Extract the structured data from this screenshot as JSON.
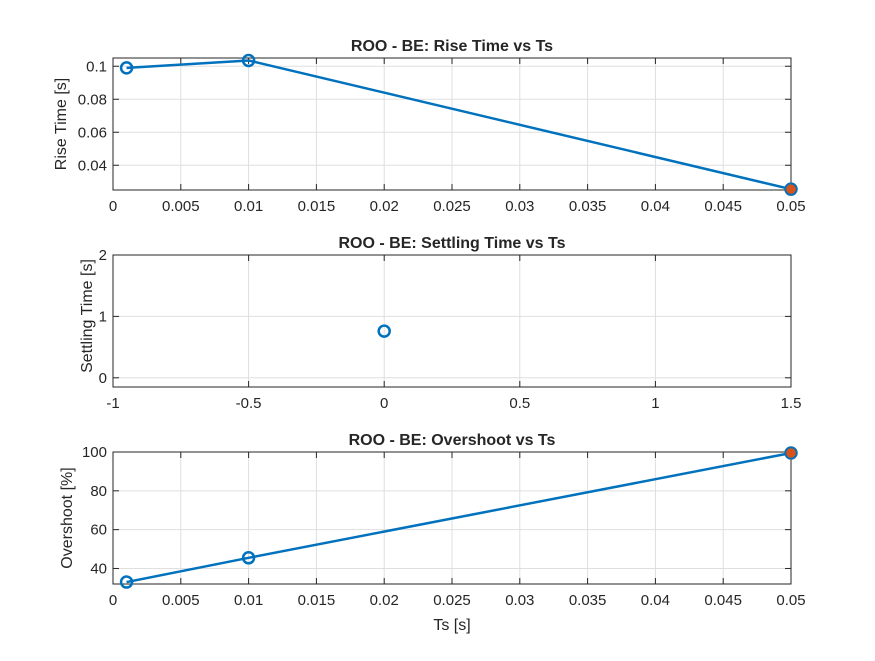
{
  "chart_data": [
    {
      "type": "line",
      "title": "ROO - BE: Rise Time vs Ts",
      "xlabel": "",
      "ylabel": "Rise Time [s]",
      "xlim": [
        0,
        0.05
      ],
      "ylim": [
        0.025,
        0.105
      ],
      "xticks": [
        0,
        0.005,
        0.01,
        0.015,
        0.02,
        0.025,
        0.03,
        0.035,
        0.04,
        0.045,
        0.05
      ],
      "xtick_labels": [
        "0",
        "0.005",
        "0.01",
        "0.015",
        "0.02",
        "0.025",
        "0.03",
        "0.035",
        "0.04",
        "0.045",
        "0.05"
      ],
      "yticks": [
        0.04,
        0.06,
        0.08,
        0.1
      ],
      "ytick_labels": [
        "0.04",
        "0.06",
        "0.08",
        "0.1"
      ],
      "grid": true,
      "series": [
        {
          "x": [
            0.001,
            0.01,
            0.05
          ],
          "y": [
            0.099,
            0.1035,
            0.0255
          ],
          "color": "#0072BD",
          "marker": "circle"
        }
      ],
      "highlight_points": [
        {
          "x": 0.05,
          "y": 0.0255,
          "color": "#D95319"
        }
      ]
    },
    {
      "type": "scatter",
      "title": "ROO - BE: Settling Time vs Ts",
      "xlabel": "",
      "ylabel": "Settling Time [s]",
      "xlim": [
        -1,
        1.5
      ],
      "ylim": [
        -0.15,
        2
      ],
      "xticks": [
        -1,
        -0.5,
        0,
        0.5,
        1,
        1.5
      ],
      "xtick_labels": [
        "-1",
        "-0.5",
        "0",
        "0.5",
        "1",
        "1.5"
      ],
      "yticks": [
        0,
        1,
        2
      ],
      "ytick_labels": [
        "0",
        "1",
        "2"
      ],
      "grid": true,
      "series": [
        {
          "x": [
            0
          ],
          "y": [
            0.76
          ],
          "color": "#0072BD",
          "marker": "circle"
        }
      ],
      "highlight_points": []
    },
    {
      "type": "line",
      "title": "ROO - BE: Overshoot vs Ts",
      "xlabel": "Ts [s]",
      "ylabel": "Overshoot [%]",
      "xlim": [
        0,
        0.05
      ],
      "ylim": [
        32,
        100
      ],
      "xticks": [
        0,
        0.005,
        0.01,
        0.015,
        0.02,
        0.025,
        0.03,
        0.035,
        0.04,
        0.045,
        0.05
      ],
      "xtick_labels": [
        "0",
        "0.005",
        "0.01",
        "0.015",
        "0.02",
        "0.025",
        "0.03",
        "0.035",
        "0.04",
        "0.045",
        "0.05"
      ],
      "yticks": [
        40,
        60,
        80,
        100
      ],
      "ytick_labels": [
        "40",
        "60",
        "80",
        "100"
      ],
      "grid": true,
      "series": [
        {
          "x": [
            0.001,
            0.01,
            0.05
          ],
          "y": [
            33,
            45.5,
            99.5
          ],
          "color": "#0072BD",
          "marker": "circle"
        }
      ],
      "highlight_points": [
        {
          "x": 0.05,
          "y": 99.5,
          "color": "#D95319"
        }
      ]
    }
  ]
}
